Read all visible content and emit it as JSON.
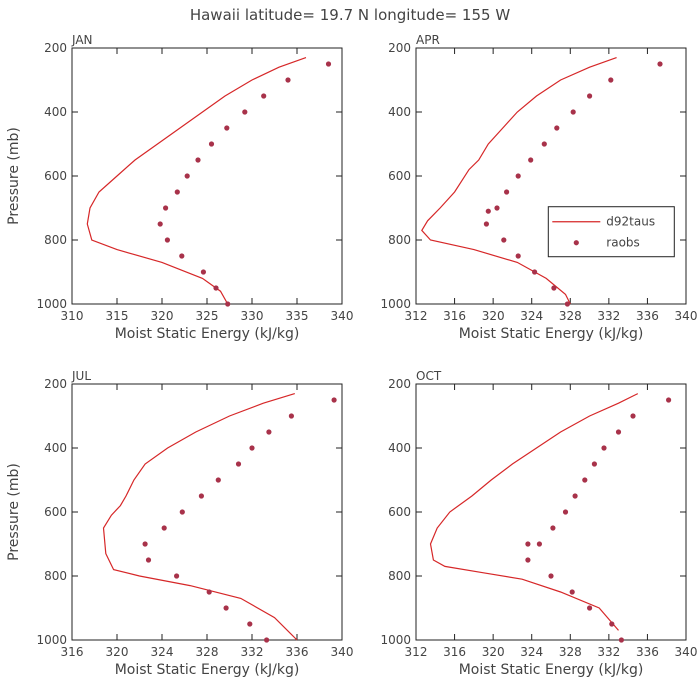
{
  "figure": {
    "title": "Hawaii  latitude= 19.7 N longitude= 155 W"
  },
  "colors": {
    "model_line": "#d62728",
    "observation_marker": "#a8324a"
  },
  "chart_data": [
    {
      "type": "line",
      "panel_title": "JAN",
      "xlabel": "Moist Static Energy (kJ/kg)",
      "ylabel": "Pressure (mb)",
      "xlim": [
        310,
        340
      ],
      "ylim": [
        1000,
        200
      ],
      "xticks": [
        310,
        315,
        320,
        325,
        330,
        335,
        340
      ],
      "yticks": [
        200,
        400,
        600,
        800,
        1000
      ],
      "series": [
        {
          "name": "d92taus",
          "kind": "line",
          "x": [
            336.0,
            333.0,
            330.0,
            327.0,
            324.5,
            322.0,
            319.5,
            317.0,
            315.0,
            313.0,
            312.0,
            311.7,
            312.2,
            315.0,
            320.0,
            324.5,
            326.5,
            327.3
          ],
          "y": [
            230,
            260,
            300,
            350,
            400,
            450,
            500,
            550,
            600,
            650,
            700,
            750,
            800,
            830,
            870,
            920,
            960,
            1000
          ]
        },
        {
          "name": "raobs",
          "kind": "points",
          "x": [
            338.5,
            334.0,
            331.3,
            329.2,
            327.2,
            325.5,
            324.0,
            322.8,
            321.7,
            320.4,
            319.8,
            320.6,
            322.2,
            324.6,
            326.0,
            327.3
          ],
          "y": [
            250,
            300,
            350,
            400,
            450,
            500,
            550,
            600,
            650,
            700,
            750,
            800,
            850,
            900,
            950,
            1000
          ]
        }
      ]
    },
    {
      "type": "line",
      "panel_title": "APR",
      "xlabel": "Moist Static Energy (kJ/kg)",
      "ylabel": "",
      "xlim": [
        312,
        340
      ],
      "ylim": [
        1000,
        200
      ],
      "xticks": [
        312,
        316,
        320,
        324,
        328,
        332,
        336,
        340
      ],
      "yticks": [
        200,
        400,
        600,
        800,
        1000
      ],
      "legend": {
        "placement": "right-middle",
        "entries": [
          "d92taus",
          "raobs"
        ]
      },
      "series": [
        {
          "name": "d92taus",
          "kind": "line",
          "x": [
            332.8,
            330.0,
            327.0,
            324.5,
            322.5,
            321.0,
            319.5,
            318.5,
            317.5,
            316.0,
            314.5,
            313.2,
            312.6,
            313.5,
            318.0,
            322.5,
            325.5,
            327.5,
            328.0
          ],
          "y": [
            230,
            260,
            300,
            350,
            400,
            450,
            500,
            550,
            580,
            650,
            700,
            740,
            770,
            800,
            830,
            870,
            920,
            970,
            1000
          ]
        },
        {
          "name": "raobs",
          "kind": "points",
          "x": [
            337.3,
            332.2,
            330.0,
            328.3,
            326.6,
            325.3,
            323.9,
            322.6,
            321.4,
            320.4,
            319.5,
            319.3,
            321.1,
            322.6,
            324.3,
            326.3,
            327.7
          ],
          "y": [
            250,
            300,
            350,
            400,
            450,
            500,
            550,
            600,
            650,
            700,
            710,
            750,
            800,
            850,
            900,
            950,
            1000
          ]
        }
      ]
    },
    {
      "type": "line",
      "panel_title": "JUL",
      "xlabel": "Moist Static Energy (kJ/kg)",
      "ylabel": "Pressure (mb)",
      "xlim": [
        316,
        340
      ],
      "ylim": [
        1000,
        200
      ],
      "xticks": [
        316,
        320,
        324,
        328,
        332,
        336,
        340
      ],
      "yticks": [
        200,
        400,
        600,
        800,
        1000
      ],
      "series": [
        {
          "name": "d92taus",
          "kind": "line",
          "x": [
            335.8,
            333.0,
            330.0,
            327.0,
            324.5,
            322.5,
            321.5,
            320.8,
            320.3,
            319.5,
            318.8,
            319.0,
            319.7,
            322.0,
            326.5,
            331.0,
            334.0,
            336.0
          ],
          "y": [
            230,
            260,
            300,
            350,
            400,
            450,
            500,
            550,
            580,
            610,
            650,
            730,
            780,
            800,
            830,
            870,
            930,
            1000
          ]
        },
        {
          "name": "raobs",
          "kind": "points",
          "x": [
            339.3,
            335.5,
            333.5,
            332.0,
            330.8,
            329.0,
            327.5,
            325.8,
            324.2,
            322.5,
            322.8,
            325.3,
            328.2,
            329.7,
            331.8,
            333.3
          ],
          "y": [
            250,
            300,
            350,
            400,
            450,
            500,
            550,
            600,
            650,
            700,
            750,
            800,
            850,
            900,
            950,
            1000
          ]
        }
      ]
    },
    {
      "type": "line",
      "panel_title": "OCT",
      "xlabel": "Moist Static Energy (kJ/kg)",
      "ylabel": "",
      "xlim": [
        312,
        340
      ],
      "ylim": [
        1000,
        200
      ],
      "xticks": [
        312,
        316,
        320,
        324,
        328,
        332,
        336,
        340
      ],
      "yticks": [
        200,
        400,
        600,
        800,
        1000
      ],
      "series": [
        {
          "name": "d92taus",
          "kind": "line",
          "x": [
            335.0,
            333.0,
            330.0,
            327.0,
            324.5,
            322.0,
            319.8,
            317.8,
            315.5,
            314.2,
            313.5,
            313.8,
            315.0,
            319.0,
            323.0,
            327.0,
            331.0,
            333.0
          ],
          "y": [
            230,
            260,
            300,
            350,
            400,
            450,
            500,
            550,
            600,
            650,
            700,
            750,
            770,
            790,
            810,
            850,
            900,
            970
          ]
        },
        {
          "name": "raobs",
          "kind": "points",
          "x": [
            338.2,
            334.5,
            333.0,
            331.5,
            330.5,
            329.5,
            328.5,
            327.5,
            326.2,
            324.8,
            323.6,
            323.6,
            326.0,
            328.2,
            330.0,
            332.3,
            333.3
          ],
          "y": [
            250,
            300,
            350,
            400,
            450,
            500,
            550,
            600,
            650,
            700,
            700,
            750,
            800,
            850,
            900,
            950,
            1000
          ]
        }
      ]
    }
  ]
}
